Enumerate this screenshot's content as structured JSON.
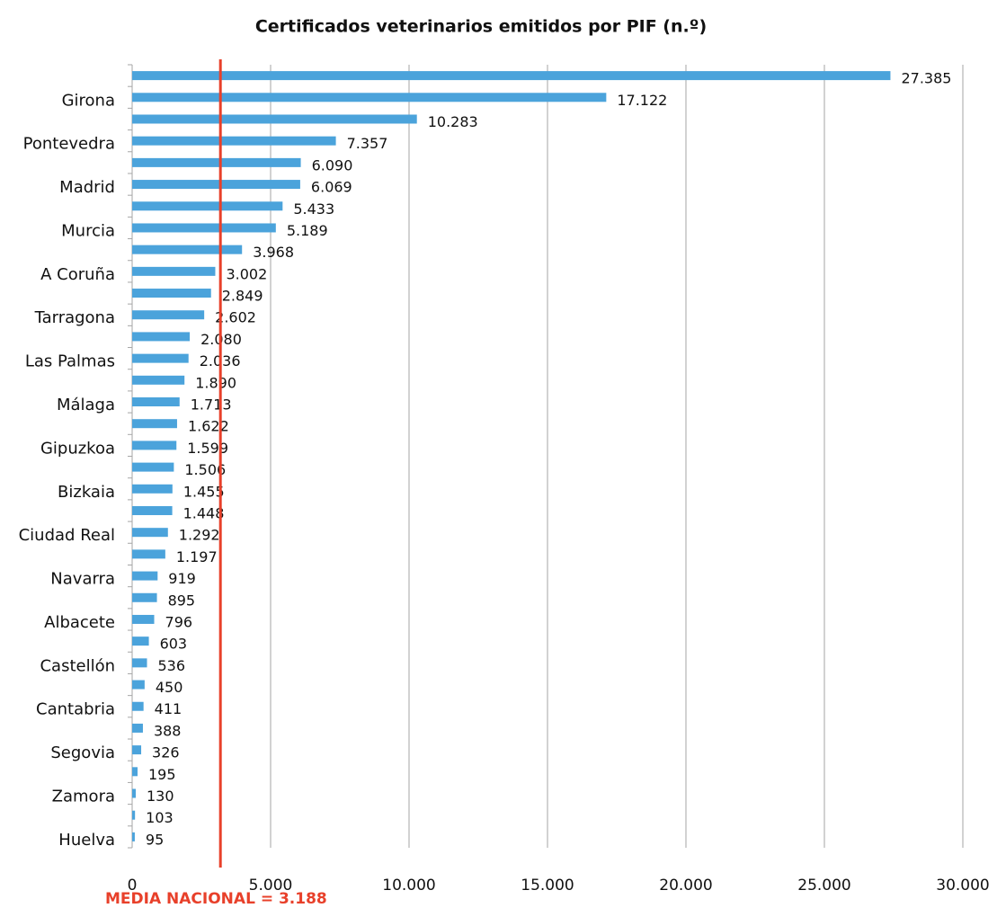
{
  "chart_data": {
    "type": "bar",
    "orientation": "horizontal",
    "title": "Certificados veterinarios emitidos por PIF (n.º)",
    "categories": [
      null,
      "Girona",
      null,
      "Pontevedra",
      null,
      "Madrid",
      null,
      "Murcia",
      null,
      "A Coruña",
      null,
      "Tarragona",
      null,
      "Las Palmas",
      null,
      "Málaga",
      null,
      "Gipuzkoa",
      null,
      "Bizkaia",
      null,
      "Ciudad Real",
      null,
      "Navarra",
      null,
      "Albacete",
      null,
      "Castellón",
      null,
      "Cantabria",
      null,
      "Segovia",
      null,
      "Zamora",
      null,
      "Huelva"
    ],
    "values": [
      27385,
      17122,
      10283,
      7357,
      6090,
      6069,
      5433,
      5189,
      3968,
      3002,
      2849,
      2602,
      2080,
      2036,
      1890,
      1713,
      1622,
      1599,
      1506,
      1455,
      1448,
      1292,
      1197,
      919,
      895,
      796,
      603,
      536,
      450,
      411,
      388,
      326,
      195,
      130,
      103,
      95
    ],
    "value_labels": [
      "27.385",
      "17.122",
      "10.283",
      "7.357",
      "6.090",
      "6.069",
      "5.433",
      "5.189",
      "3.968",
      "3.002",
      "2.849",
      "2.602",
      "2.080",
      "2.036",
      "1.890",
      "1.713",
      "1.622",
      "1.599",
      "1.506",
      "1.455",
      "1.448",
      "1.292",
      "1.197",
      "919",
      "895",
      "796",
      "603",
      "536",
      "450",
      "411",
      "388",
      "326",
      "195",
      "130",
      "103",
      "95"
    ],
    "color": "#4ba3db",
    "xlim": [
      0,
      30000
    ],
    "xticks": [
      0,
      {
        "value": 5000,
        "label": "5.000"
      },
      {
        "value": 10000,
        "label": "10.000"
      },
      {
        "value": 15000,
        "label": "15.000"
      },
      {
        "value": 20000,
        "label": "20.000"
      },
      {
        "value": 25000,
        "label": "25.000"
      },
      {
        "value": 30000,
        "label": "30.000"
      }
    ],
    "grid": true,
    "reference_line": {
      "value": 3188,
      "label": "MEDIA NACIONAL = 3.188",
      "color": "#e8402a"
    }
  }
}
